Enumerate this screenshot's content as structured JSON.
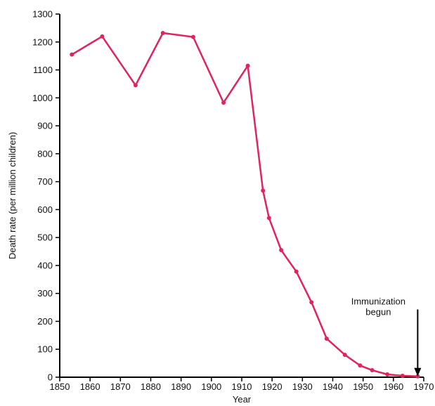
{
  "chart_data": {
    "type": "line",
    "title": "",
    "xlabel": "Year",
    "ylabel": "Death rate (per million children)",
    "xlim": [
      1850,
      1970
    ],
    "ylim": [
      0,
      1300
    ],
    "x_ticks": [
      1850,
      1860,
      1870,
      1880,
      1890,
      1900,
      1910,
      1920,
      1930,
      1940,
      1950,
      1960,
      1970
    ],
    "y_ticks": [
      0,
      100,
      200,
      300,
      400,
      500,
      600,
      700,
      800,
      900,
      1000,
      1100,
      1200,
      1300
    ],
    "grid": false,
    "line_color": "#e0245e",
    "series": [
      {
        "x": [
          1854,
          1864,
          1875,
          1884,
          1894,
          1904,
          1912,
          1917,
          1919,
          1923,
          1928,
          1933,
          1938,
          1944,
          1949,
          1953,
          1958,
          1963,
          1968
        ],
        "values": [
          1155,
          1220,
          1045,
          1232,
          1218,
          983,
          1115,
          668,
          570,
          455,
          378,
          268,
          138,
          80,
          42,
          25,
          10,
          5,
          3
        ]
      }
    ],
    "annotation": {
      "lines": [
        "Immunization",
        "begun"
      ],
      "x": 1968,
      "arrow_from_y": 230,
      "arrow_to_y": 3
    }
  }
}
